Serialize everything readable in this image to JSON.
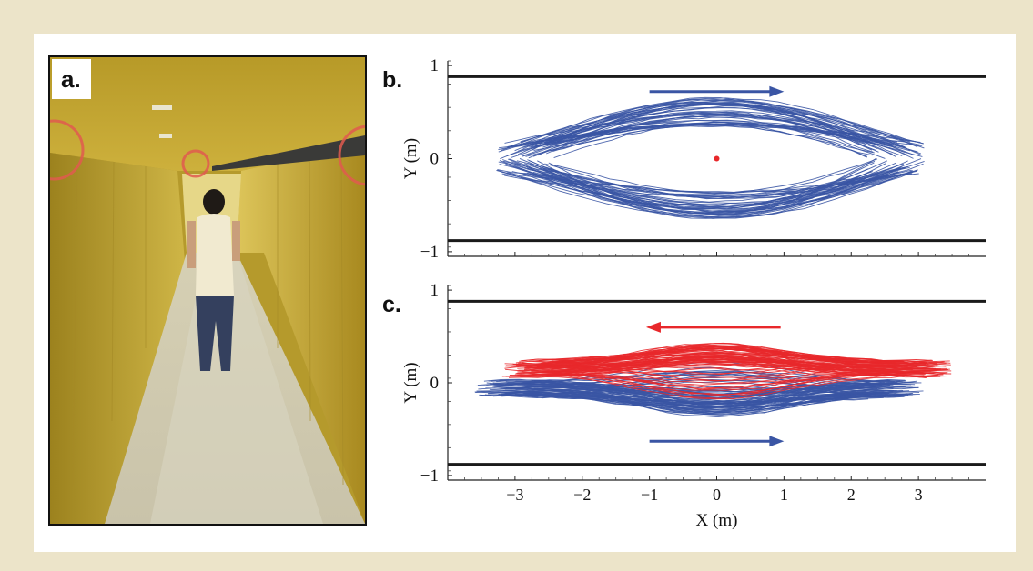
{
  "panel_labels": {
    "a": "a.",
    "b": "b.",
    "c": "c."
  },
  "colors": {
    "blue": "#3a55a4",
    "red": "#e8282b",
    "frame": "#1a1a1a"
  },
  "chart_data": [
    {
      "id": "b",
      "type": "line",
      "description_in_image": "pedestrian trajectories, single walking direction",
      "ylabel": "Y (m)",
      "xlabel": "",
      "xlim": [
        -4,
        4
      ],
      "ylim": [
        -1.05,
        1.05
      ],
      "yticks": [
        1,
        0,
        -1
      ],
      "ytick_labels": [
        "1",
        "0",
        "−1"
      ],
      "xticks": [
        -3,
        -2,
        -1,
        0,
        1,
        2,
        3
      ],
      "xtick_labels": [],
      "walls": [
        0.88,
        -0.88
      ],
      "arrows": [
        {
          "direction": "right",
          "y": 0.72,
          "x_from": -1.0,
          "x_to": 1.0,
          "color": "blue"
        }
      ],
      "marker": {
        "x": 0,
        "y": 0,
        "color": "red"
      },
      "series": [
        {
          "color": "blue",
          "direction": "right",
          "trajectory_count": 90,
          "x_range": [
            -3.3,
            3.1
          ],
          "peak_abs_y": [
            0.35,
            0.65
          ],
          "end_abs_y_max": 0.18
        }
      ]
    },
    {
      "id": "c",
      "type": "line",
      "description_in_image": "pedestrian trajectories, two opposing walking directions",
      "ylabel": "Y (m)",
      "xlabel": "X (m)",
      "xlim": [
        -4,
        4
      ],
      "ylim": [
        -1.05,
        1.05
      ],
      "yticks": [
        1,
        0,
        -1
      ],
      "ytick_labels": [
        "1",
        "0",
        "−1"
      ],
      "xticks": [
        -3,
        -2,
        -1,
        0,
        1,
        2,
        3
      ],
      "xtick_labels": [
        "−3",
        "−2",
        "−1",
        "0",
        "1",
        "2",
        "3"
      ],
      "walls": [
        0.88,
        -0.88
      ],
      "arrows": [
        {
          "direction": "left",
          "y": 0.6,
          "x_from": 0.95,
          "x_to": -1.05,
          "color": "red"
        },
        {
          "direction": "right",
          "y": -0.63,
          "x_from": -1.0,
          "x_to": 1.0,
          "color": "blue"
        }
      ],
      "series": [
        {
          "color": "blue",
          "direction": "right",
          "trajectory_count": 80,
          "x_range": [
            -3.6,
            3.1
          ],
          "center_y": -0.06,
          "band": [
            -0.4,
            0.25
          ]
        },
        {
          "color": "red",
          "direction": "left",
          "trajectory_count": 80,
          "x_range": [
            -3.2,
            3.5
          ],
          "center_y": 0.15,
          "band": [
            -0.2,
            0.48
          ]
        }
      ]
    }
  ]
}
